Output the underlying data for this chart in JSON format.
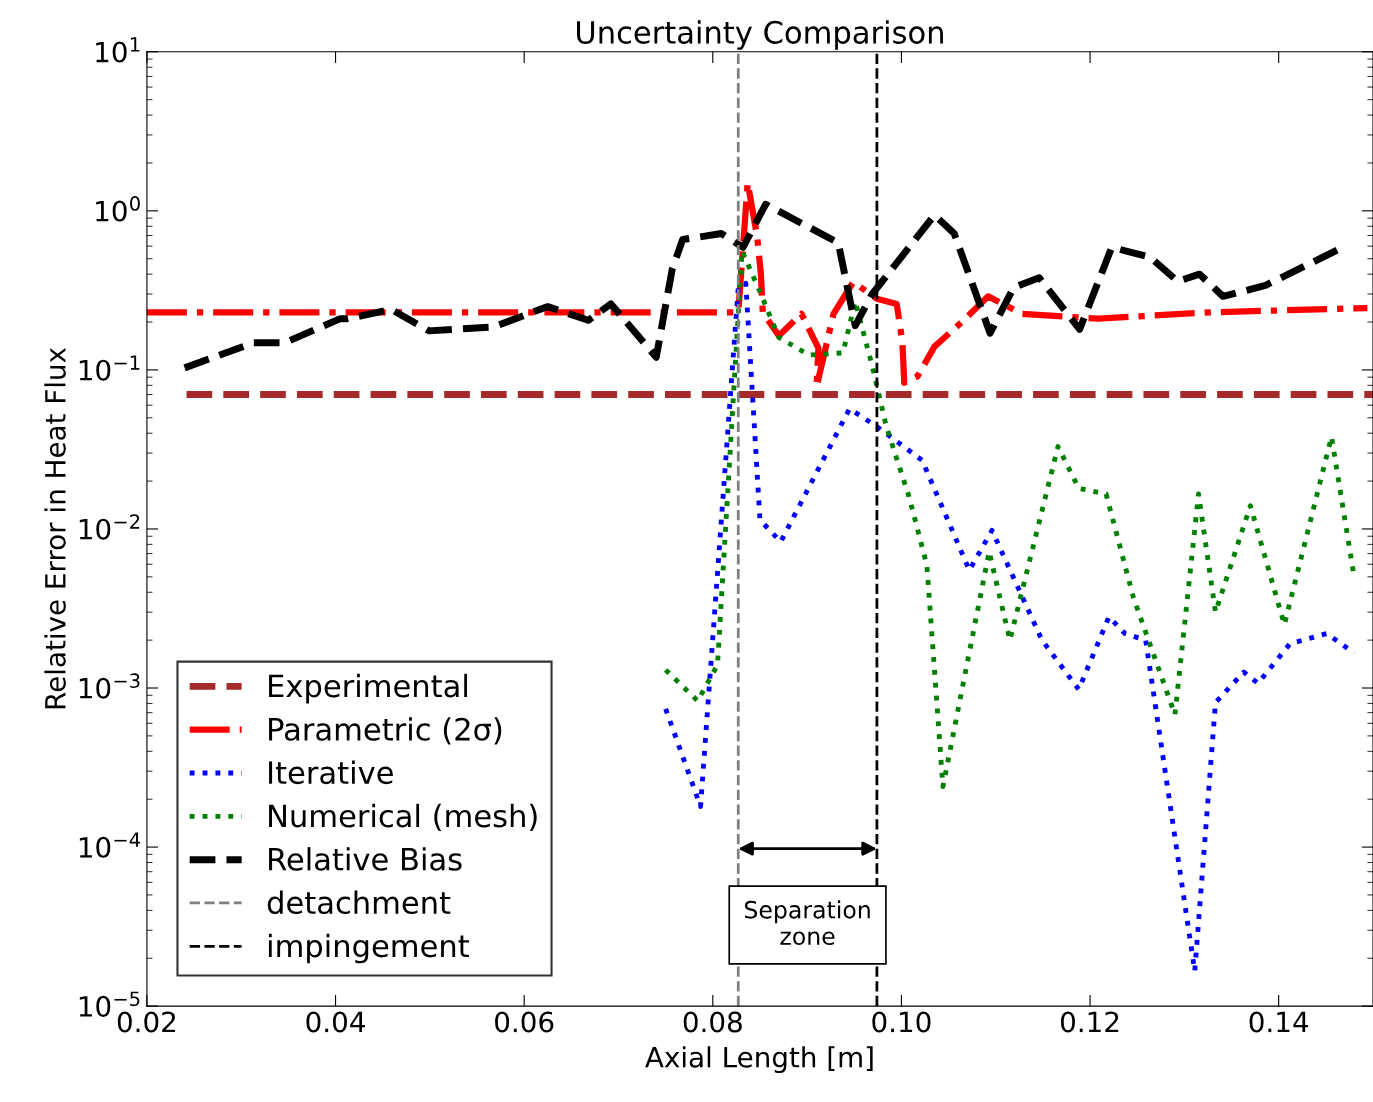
{
  "chart_data": {
    "type": "line",
    "title": "Uncertainty Comparison",
    "xlabel": "Axial Length [m]",
    "ylabel": "Relative Error in Heat Flux",
    "log": "y",
    "xlim": [
      0.02,
      0.15
    ],
    "xticks": [
      0.02,
      0.04,
      0.06,
      0.08,
      {
        "value": 0.1,
        "label": "0.10"
      },
      0.12,
      0.14
    ],
    "ylim": [
      1e-05,
      10
    ],
    "yticks": [
      {
        "value": 1e-05,
        "label": "10$^{−5}$"
      },
      {
        "value": 0.0001,
        "label": "10$^{−4}$"
      },
      {
        "value": 0.001,
        "label": "10$^{−3}$"
      },
      {
        "value": 0.01,
        "label": "10$^{−2}$"
      },
      {
        "value": 0.1,
        "label": "10$^{−1}$"
      },
      {
        "value": 1,
        "label": "10$^{0}$"
      },
      {
        "value": 10,
        "label": "10$^{1}$"
      }
    ],
    "grid": false,
    "legend": "bottom left",
    "series": [
      {
        "name": "Experimental",
        "color": "#a52a2a",
        "line_style": "dashed",
        "x": [
          0.0242,
          0.15
        ],
        "values": [
          0.07,
          0.07
        ]
      },
      {
        "name": "Parametric (2σ)",
        "color": "#ff0000",
        "line_style": "dashdot",
        "x": [
          0.02,
          0.0827,
          0.0837,
          0.0847,
          0.0851,
          0.0853,
          0.087,
          0.0894,
          0.0912,
          0.091,
          0.0928,
          0.0949,
          0.0974,
          0.0995,
          0.1001,
          0.1003,
          0.1017,
          0.1035,
          0.1064,
          0.1092,
          0.1128,
          0.1209,
          0.1327,
          0.1494
        ],
        "values": [
          0.23,
          0.23,
          1.5,
          0.69,
          0.4,
          0.23,
          0.164,
          0.225,
          0.137,
          0.078,
          0.225,
          0.357,
          0.28,
          0.26,
          0.15,
          0.083,
          0.091,
          0.14,
          0.2,
          0.29,
          0.225,
          0.21,
          0.23,
          0.245
        ]
      },
      {
        "name": "Iterative",
        "color": "#0000ff",
        "line_style": "dotted",
        "x": [
          0.075,
          0.0787,
          0.0827,
          0.0835,
          0.085,
          0.0872,
          0.0945,
          0.0974,
          0.1022,
          0.1072,
          0.1096,
          0.1149,
          0.1188,
          0.122,
          0.1237,
          0.1259,
          0.1311,
          0.1333,
          0.1363,
          0.1378,
          0.1412,
          0.1451,
          0.148
        ],
        "values": [
          0.00074,
          0.00018,
          0.33,
          0.35,
          0.0114,
          0.0083,
          0.057,
          0.044,
          0.027,
          0.0055,
          0.0098,
          0.002,
          0.00098,
          0.0028,
          0.0022,
          0.002,
          1.66e-05,
          0.00081,
          0.00126,
          0.00107,
          0.0019,
          0.0022,
          0.00166
        ]
      },
      {
        "name": "Numerical (mesh)",
        "color": "#008000",
        "line_style": "dotted",
        "x": [
          0.075,
          0.0784,
          0.0805,
          0.0831,
          0.0851,
          0.087,
          0.0902,
          0.0938,
          0.0951,
          0.0969,
          0.0984,
          0.1008,
          0.1027,
          0.1044,
          0.1093,
          0.1115,
          0.1166,
          0.1188,
          0.1217,
          0.1246,
          0.129,
          0.1315,
          0.1333,
          0.137,
          0.1406,
          0.1456,
          0.148
        ],
        "values": [
          0.0013,
          0.00083,
          0.0014,
          0.56,
          0.3,
          0.16,
          0.124,
          0.128,
          0.27,
          0.106,
          0.044,
          0.016,
          0.0059,
          0.00024,
          0.0072,
          0.002,
          0.033,
          0.018,
          0.0166,
          0.0037,
          0.00068,
          0.0166,
          0.003,
          0.014,
          0.0025,
          0.038,
          0.005
        ]
      },
      {
        "name": "Relative Bias",
        "color": "#000000",
        "line_style": "dashed",
        "x": [
          0.024,
          0.0313,
          0.0346,
          0.0405,
          0.0413,
          0.0459,
          0.0499,
          0.0567,
          0.0625,
          0.0668,
          0.0692,
          0.074,
          0.0757,
          0.0768,
          0.0809,
          0.0832,
          0.0856,
          0.0933,
          0.0951,
          0.0969,
          0.1035,
          0.1056,
          0.1094,
          0.1119,
          0.1146,
          0.1189,
          0.1223,
          0.1264,
          0.1293,
          0.1316,
          0.1341,
          0.1386,
          0.1463
        ],
        "values": [
          0.103,
          0.148,
          0.148,
          0.21,
          0.21,
          0.24,
          0.176,
          0.186,
          0.25,
          0.205,
          0.26,
          0.12,
          0.43,
          0.66,
          0.72,
          0.59,
          1.1,
          0.63,
          0.19,
          0.3,
          0.94,
          0.72,
          0.17,
          0.33,
          0.38,
          0.18,
          0.59,
          0.51,
          0.36,
          0.4,
          0.29,
          0.34,
          0.57
        ]
      },
      {
        "name": "detachment",
        "color": "#808080",
        "line_style": "dashed",
        "x": [
          0.0827,
          0.0827
        ],
        "values": [
          1e-05,
          10
        ]
      },
      {
        "name": "impingement",
        "color": "#000000",
        "line_style": "dashed",
        "x": [
          0.0974,
          0.0974
        ],
        "values": [
          1e-05,
          10
        ]
      }
    ],
    "annotations": [
      "Separation\nzone"
    ]
  }
}
